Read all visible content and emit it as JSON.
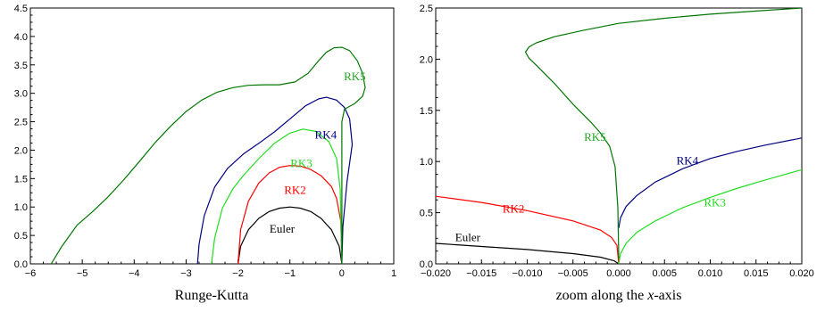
{
  "chart_data": [
    {
      "type": "line",
      "title": "",
      "xlabel": "Runge-Kutta",
      "ylabel": "",
      "xlim": [
        -6,
        1
      ],
      "ylim": [
        0,
        4.5
      ],
      "xticks": [
        -6,
        -5,
        -4,
        -3,
        -2,
        -1,
        0,
        1
      ],
      "yticks": [
        0.0,
        0.5,
        1.0,
        1.5,
        2.0,
        2.5,
        3.0,
        3.5,
        4.0,
        4.5
      ],
      "xtick_labels": [
        "−6",
        "−5",
        "−4",
        "−3",
        "−2",
        "−1",
        "0",
        "1"
      ],
      "ytick_labels": [
        "0.0",
        "0.5",
        "1.0",
        "1.5",
        "2.0",
        "2.5",
        "3.0",
        "3.5",
        "4.0",
        "4.5"
      ],
      "grid": false,
      "series": [
        {
          "name": "Euler",
          "color": "#000000",
          "x": [
            -2.0,
            -1.95,
            -1.8,
            -1.6,
            -1.4,
            -1.2,
            -1.0,
            -0.8,
            -0.6,
            -0.4,
            -0.2,
            -0.05,
            0.0
          ],
          "y": [
            0.0,
            0.31,
            0.6,
            0.8,
            0.92,
            0.98,
            1.0,
            0.98,
            0.92,
            0.8,
            0.6,
            0.31,
            0.0
          ]
        },
        {
          "name": "RK2",
          "color": "#ff0000",
          "x": [
            -2.0,
            -1.95,
            -1.8,
            -1.6,
            -1.4,
            -1.2,
            -1.0,
            -0.8,
            -0.6,
            -0.4,
            -0.2,
            -0.1,
            -0.02,
            0.0
          ],
          "y": [
            0.0,
            0.6,
            1.1,
            1.42,
            1.6,
            1.7,
            1.73,
            1.72,
            1.66,
            1.55,
            1.36,
            1.15,
            0.75,
            0.0
          ]
        },
        {
          "name": "RK3",
          "color": "#22dd22",
          "x": [
            -2.51,
            -2.45,
            -2.3,
            -2.1,
            -1.9,
            -1.6,
            -1.3,
            -1.0,
            -0.75,
            -0.5,
            -0.25,
            -0.1,
            -0.03,
            0.0
          ],
          "y": [
            0.0,
            0.45,
            0.98,
            1.32,
            1.55,
            1.85,
            2.12,
            2.3,
            2.37,
            2.33,
            2.15,
            1.85,
            1.3,
            0.0
          ]
        },
        {
          "name": "RK4",
          "color": "#000080",
          "x": [
            -2.78,
            -2.75,
            -2.65,
            -2.45,
            -2.2,
            -1.9,
            -1.6,
            -1.3,
            -1.0,
            -0.7,
            -0.45,
            -0.3,
            -0.1,
            0.05,
            0.15,
            0.2,
            0.1,
            0.02,
            0.0
          ],
          "y": [
            0.0,
            0.35,
            0.85,
            1.35,
            1.68,
            1.93,
            2.12,
            2.32,
            2.55,
            2.78,
            2.9,
            2.93,
            2.88,
            2.75,
            2.55,
            2.1,
            1.45,
            0.65,
            0.0
          ]
        },
        {
          "name": "RK5",
          "color": "#007700",
          "x": [
            -5.6,
            -5.4,
            -5.1,
            -4.8,
            -4.5,
            -4.2,
            -3.9,
            -3.6,
            -3.3,
            -3.0,
            -2.7,
            -2.4,
            -2.1,
            -1.8,
            -1.5,
            -1.2,
            -0.9,
            -0.65,
            -0.45,
            -0.3,
            -0.15,
            0.0,
            0.15,
            0.3,
            0.4,
            0.45,
            0.4,
            0.25,
            0.05,
            0.0,
            0.0,
            0.0
          ],
          "y": [
            0.0,
            0.3,
            0.68,
            0.92,
            1.18,
            1.48,
            1.8,
            2.13,
            2.42,
            2.68,
            2.88,
            3.02,
            3.1,
            3.14,
            3.15,
            3.15,
            3.2,
            3.35,
            3.57,
            3.72,
            3.8,
            3.81,
            3.75,
            3.57,
            3.35,
            3.1,
            2.95,
            2.82,
            2.72,
            2.5,
            1.5,
            0.0
          ]
        }
      ],
      "annotations": [
        {
          "text": "Euler",
          "x": -1.15,
          "y": 0.55,
          "color": "#000000"
        },
        {
          "text": "RK2",
          "x": -0.9,
          "y": 1.23,
          "color": "#ff0000"
        },
        {
          "text": "RK3",
          "x": -0.78,
          "y": 1.7,
          "color": "#22dd22"
        },
        {
          "text": "RK4",
          "x": -0.31,
          "y": 2.2,
          "color": "#000080"
        },
        {
          "text": "RK5",
          "x": 0.25,
          "y": 3.23,
          "color": "#22aa22"
        }
      ]
    },
    {
      "type": "line",
      "title": "",
      "xlabel": "zoom along the x-axis",
      "xlabel_parts": [
        "zoom along the ",
        "x",
        "-axis"
      ],
      "ylabel": "",
      "xlim": [
        -0.02,
        0.02
      ],
      "ylim": [
        0,
        2.5
      ],
      "xticks": [
        -0.02,
        -0.015,
        -0.01,
        -0.005,
        0.0,
        0.005,
        0.01,
        0.015,
        0.02
      ],
      "yticks": [
        0.0,
        0.5,
        1.0,
        1.5,
        2.0,
        2.5
      ],
      "xtick_labels": [
        "−0.020",
        "−0.015",
        "−0.010",
        "−0.005",
        "0.000",
        "0.005",
        "0.010",
        "0.015",
        "0.020"
      ],
      "ytick_labels": [
        "0.0",
        "0.5",
        "1.0",
        "1.5",
        "2.0",
        "2.5"
      ],
      "grid": false,
      "series": [
        {
          "name": "Euler",
          "color": "#000000",
          "x": [
            -0.02,
            -0.015,
            -0.01,
            -0.005,
            -0.002,
            -0.0005,
            0.0
          ],
          "y": [
            0.2,
            0.17,
            0.14,
            0.1,
            0.065,
            0.03,
            0.0
          ]
        },
        {
          "name": "RK2",
          "color": "#ff0000",
          "x": [
            -0.02,
            -0.015,
            -0.01,
            -0.005,
            -0.002,
            -0.0008,
            -0.0002,
            0.0
          ],
          "y": [
            0.66,
            0.6,
            0.52,
            0.42,
            0.33,
            0.26,
            0.18,
            0.0
          ]
        },
        {
          "name": "RK3",
          "color": "#22dd22",
          "x": [
            0.0,
            0.0002,
            0.0008,
            0.002,
            0.004,
            0.007,
            0.01,
            0.013,
            0.016,
            0.02
          ],
          "y": [
            0.0,
            0.1,
            0.2,
            0.31,
            0.42,
            0.55,
            0.65,
            0.74,
            0.82,
            0.92
          ]
        },
        {
          "name": "RK4",
          "color": "#000080",
          "x": [
            0.0,
            0.0002,
            0.0008,
            0.002,
            0.004,
            0.007,
            0.01,
            0.013,
            0.016,
            0.02
          ],
          "y": [
            0.35,
            0.45,
            0.56,
            0.67,
            0.8,
            0.93,
            1.03,
            1.1,
            1.16,
            1.23
          ]
        },
        {
          "name": "RK5",
          "color": "#007700",
          "x": [
            0.0,
            -0.0001,
            -0.0004,
            -0.001,
            -0.002,
            -0.003,
            -0.004,
            -0.005,
            -0.006,
            -0.007,
            -0.008,
            -0.009,
            -0.0098,
            -0.0102,
            -0.0098,
            -0.009,
            -0.007,
            -0.004,
            0.0,
            0.005,
            0.01,
            0.015,
            0.02
          ],
          "y": [
            0.05,
            0.55,
            0.95,
            1.15,
            1.28,
            1.38,
            1.47,
            1.56,
            1.66,
            1.76,
            1.85,
            1.94,
            2.01,
            2.07,
            2.12,
            2.16,
            2.22,
            2.28,
            2.35,
            2.4,
            2.44,
            2.47,
            2.5
          ]
        }
      ],
      "annotations": [
        {
          "text": "Euler",
          "x": -0.0165,
          "y": 0.22,
          "color": "#000000"
        },
        {
          "text": "RK2",
          "x": -0.0115,
          "y": 0.5,
          "color": "#ff0000"
        },
        {
          "text": "RK3",
          "x": 0.0105,
          "y": 0.56,
          "color": "#22dd22"
        },
        {
          "text": "RK4",
          "x": 0.0075,
          "y": 0.97,
          "color": "#000080"
        },
        {
          "text": "RK5",
          "x": -0.0026,
          "y": 1.2,
          "color": "#22aa22"
        }
      ]
    }
  ]
}
